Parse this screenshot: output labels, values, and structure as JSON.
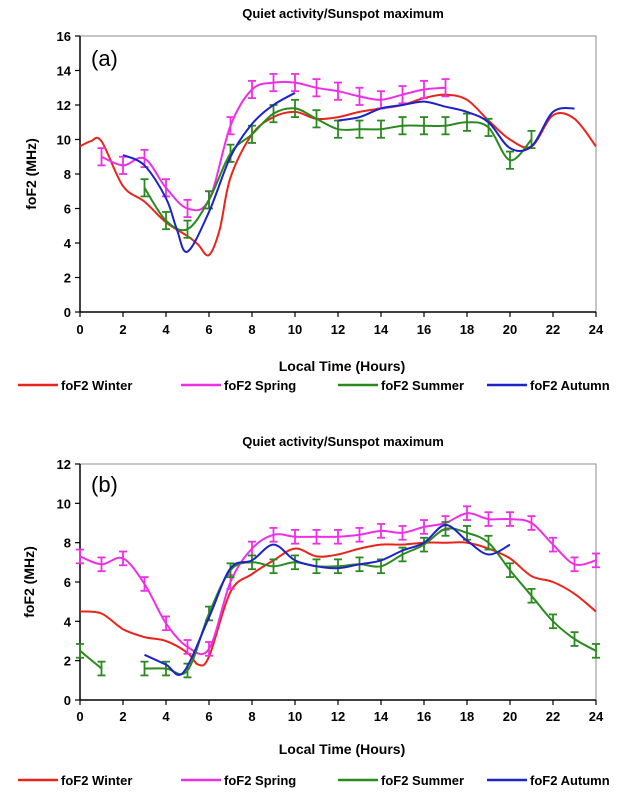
{
  "colors": {
    "winter": "#e8251c",
    "spring": "#ee2fe6",
    "summer": "#2a8a1f",
    "autumn": "#1d22c9"
  },
  "chart_data": [
    {
      "type": "line",
      "panel_label": "(a)",
      "title": "Quiet activity/Sunspot maximum",
      "xlabel": "Local Time (Hours)",
      "ylabel": "foF2 (MHz)",
      "xlim": [
        0,
        24
      ],
      "ylim": [
        0,
        16
      ],
      "xticks": [
        0,
        2,
        4,
        6,
        8,
        10,
        12,
        14,
        16,
        18,
        20,
        22,
        24
      ],
      "yticks": [
        0,
        2,
        4,
        6,
        8,
        10,
        12,
        14,
        16
      ],
      "legend_position": "bottom",
      "series": [
        {
          "name": "foF2 Winter",
          "color_key": "winter",
          "error_bars": false,
          "x": [
            0,
            0.5,
            1,
            2,
            3,
            4,
            5,
            5.5,
            6,
            6.5,
            7,
            8,
            9,
            10,
            11,
            12,
            13,
            14,
            15,
            16,
            17,
            18,
            19,
            20,
            21,
            22,
            23,
            24
          ],
          "y": [
            9.6,
            9.9,
            9.9,
            7.3,
            6.4,
            5.2,
            4.4,
            3.9,
            3.3,
            4.8,
            7.8,
            10.3,
            11.3,
            11.6,
            11.2,
            11.3,
            11.6,
            11.8,
            12.0,
            12.4,
            12.6,
            12.3,
            11.1,
            10.0,
            9.6,
            11.4,
            11.2,
            9.6
          ]
        },
        {
          "name": "foF2 Spring",
          "color_key": "spring",
          "error_bars": true,
          "error": 0.5,
          "x": [
            1,
            2,
            3,
            4,
            5,
            6,
            7,
            8,
            9,
            10,
            11,
            12,
            13,
            14,
            15,
            16,
            17
          ],
          "y": [
            9.0,
            8.5,
            8.9,
            7.2,
            6.0,
            6.5,
            10.8,
            12.9,
            13.3,
            13.3,
            13.0,
            12.8,
            12.5,
            12.3,
            12.6,
            12.9,
            13.0
          ]
        },
        {
          "name": "foF2 Summer",
          "color_key": "summer",
          "error_bars": true,
          "error": 0.5,
          "x": [
            3,
            4,
            5,
            6,
            7,
            8,
            9,
            10,
            11,
            12,
            13,
            14,
            15,
            16,
            17,
            18,
            19,
            20,
            21
          ],
          "y": [
            7.2,
            5.3,
            4.8,
            6.5,
            9.2,
            10.3,
            11.5,
            11.8,
            11.2,
            10.6,
            10.6,
            10.6,
            10.8,
            10.8,
            10.8,
            11.0,
            10.7,
            8.8,
            10.0
          ]
        },
        {
          "name": "foF2 Autumn",
          "color_key": "autumn",
          "error_bars": false,
          "x": [
            2,
            3,
            4,
            4.5,
            5,
            6,
            7,
            8,
            9,
            10,
            11,
            12,
            13,
            14,
            15,
            16,
            17,
            18,
            19,
            20,
            21,
            22,
            23
          ],
          "y": [
            9.1,
            8.5,
            6.6,
            4.8,
            3.5,
            5.8,
            9.0,
            10.9,
            12.0,
            12.7,
            null,
            11.1,
            11.3,
            11.8,
            12.0,
            12.2,
            11.9,
            11.6,
            11.0,
            9.5,
            9.6,
            11.6,
            11.8
          ]
        }
      ]
    },
    {
      "type": "line",
      "panel_label": "(b)",
      "title": "Quiet activity/Sunspot maximum",
      "xlabel": "Local Time (Hours)",
      "ylabel": "foF2 (MHz)",
      "xlim": [
        0,
        24
      ],
      "ylim": [
        0,
        12
      ],
      "xticks": [
        0,
        2,
        4,
        6,
        8,
        10,
        12,
        14,
        16,
        18,
        20,
        22,
        24
      ],
      "yticks": [
        0,
        2,
        4,
        6,
        8,
        10,
        12
      ],
      "legend_position": "bottom",
      "series": [
        {
          "name": "foF2 Winter",
          "color_key": "winter",
          "error_bars": false,
          "x": [
            0,
            1,
            2,
            3,
            4,
            5,
            5.5,
            6,
            7,
            8,
            9,
            10,
            11,
            12,
            13,
            14,
            15,
            16,
            17,
            18,
            19,
            20,
            21,
            22,
            23,
            24
          ],
          "y": [
            4.5,
            4.4,
            3.6,
            3.2,
            3.0,
            2.4,
            1.8,
            2.2,
            5.5,
            6.4,
            7.1,
            7.7,
            7.3,
            7.4,
            7.7,
            7.9,
            7.9,
            8.0,
            8.0,
            8.0,
            7.7,
            7.2,
            6.3,
            6.0,
            5.4,
            4.5
          ]
        },
        {
          "name": "foF2 Spring",
          "color_key": "spring",
          "error_bars": true,
          "error": 0.35,
          "x": [
            0,
            1,
            2,
            3,
            4,
            5,
            6,
            7,
            8,
            9,
            10,
            11,
            12,
            13,
            14,
            15,
            16,
            17,
            18,
            19,
            20,
            21,
            22,
            23,
            24
          ],
          "y": [
            7.3,
            6.9,
            7.2,
            5.9,
            3.9,
            2.7,
            2.6,
            6.0,
            7.7,
            8.4,
            8.3,
            8.3,
            8.3,
            8.4,
            8.6,
            8.5,
            8.8,
            9.0,
            9.5,
            9.2,
            9.2,
            9.0,
            7.9,
            6.9,
            7.1
          ]
        },
        {
          "name": "foF2 Summer",
          "color_key": "summer",
          "error_bars": true,
          "error": 0.35,
          "x": [
            0,
            1,
            null,
            3,
            4,
            5,
            6,
            7,
            8,
            9,
            10,
            11,
            12,
            13,
            14,
            15,
            16,
            17,
            18,
            19,
            20,
            21,
            22,
            23,
            24
          ],
          "y": [
            2.5,
            1.6,
            null,
            1.6,
            1.6,
            1.5,
            4.4,
            6.6,
            7.0,
            6.8,
            7.0,
            6.8,
            6.8,
            6.9,
            6.8,
            7.4,
            7.9,
            8.7,
            8.5,
            8.0,
            6.6,
            5.3,
            4.0,
            3.1,
            2.5
          ]
        },
        {
          "name": "foF2 Autumn",
          "color_key": "autumn",
          "error_bars": false,
          "x": [
            3,
            4,
            4.8,
            6,
            7,
            8,
            9,
            10,
            11,
            12,
            13,
            14,
            15,
            16,
            17,
            18,
            19,
            20
          ],
          "y": [
            2.3,
            1.8,
            1.4,
            4.2,
            6.7,
            7.1,
            7.9,
            7.1,
            6.8,
            6.7,
            6.9,
            7.1,
            7.6,
            8.0,
            8.9,
            8.1,
            7.4,
            7.9
          ]
        }
      ]
    }
  ]
}
